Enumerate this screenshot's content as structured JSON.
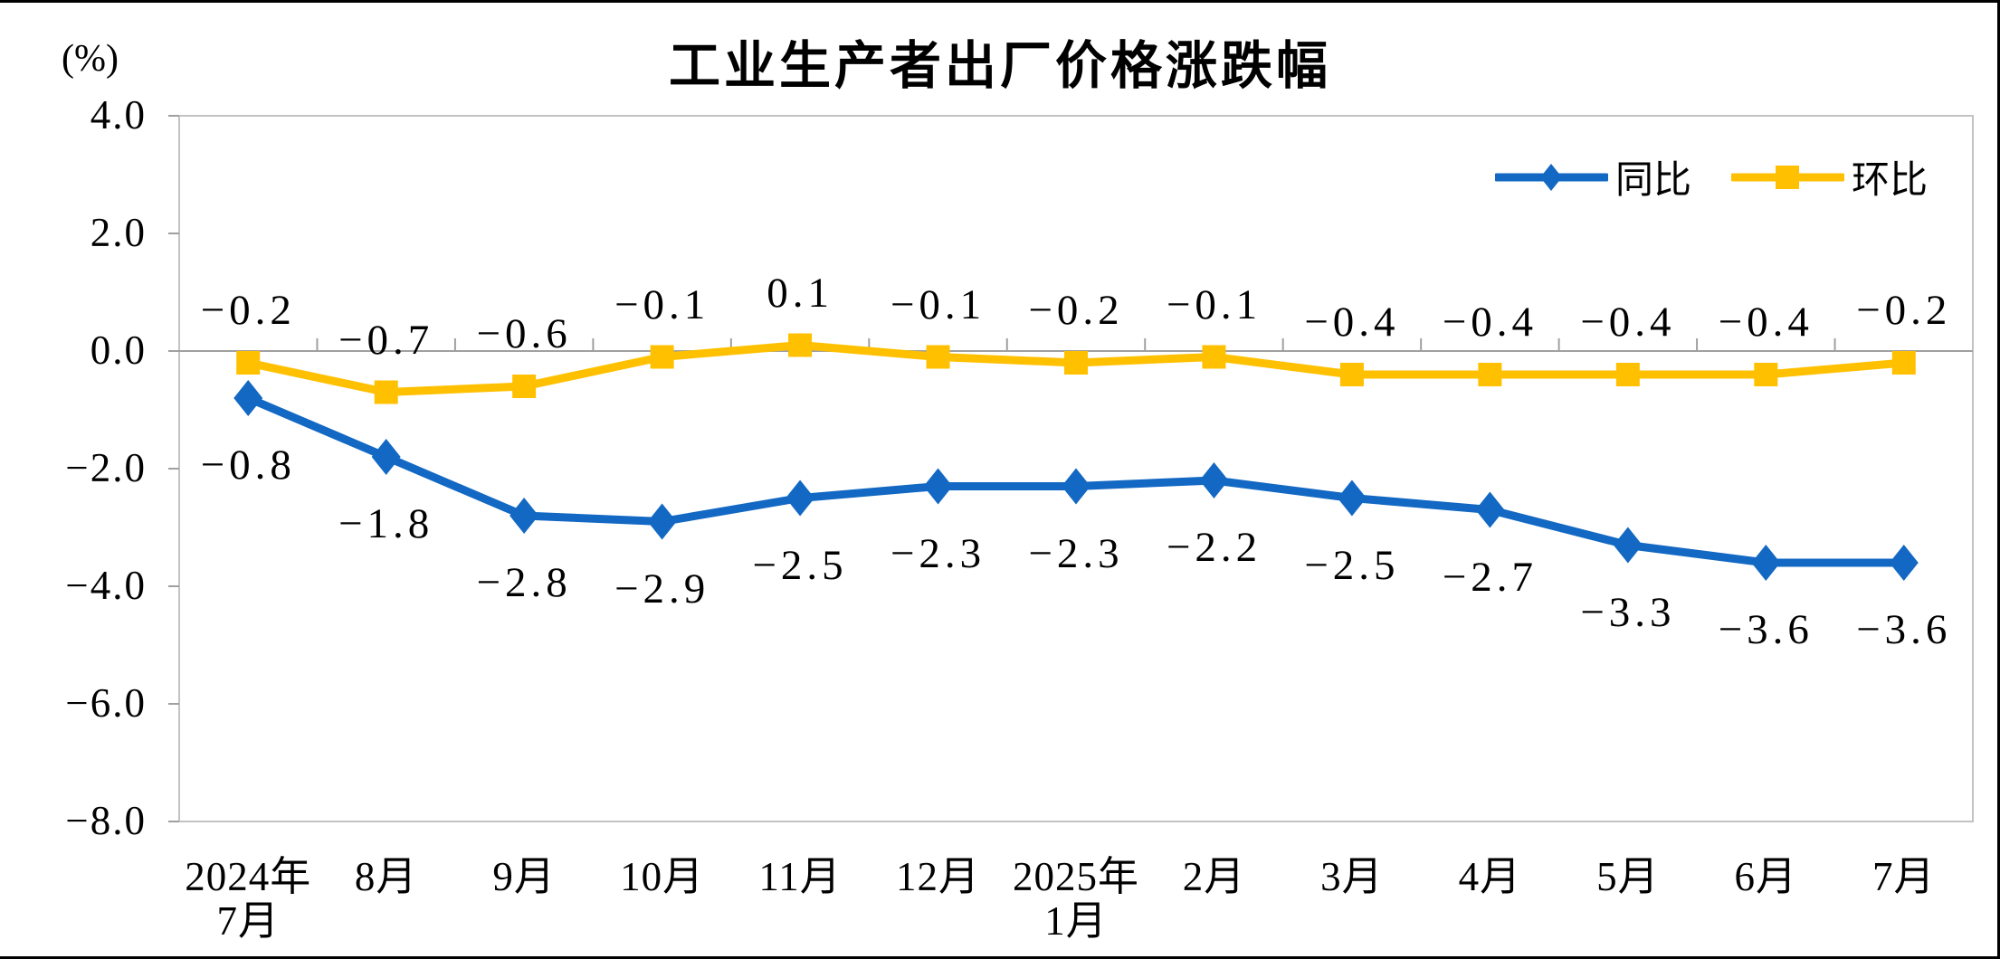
{
  "title": "工业生产者出厂价格涨跌幅",
  "y_axis_unit": "(%)",
  "legend": [
    {
      "id": "yoy",
      "label": "同比",
      "color": "#1268C3",
      "marker": "diamond"
    },
    {
      "id": "mom",
      "label": "环比",
      "color": "#FFC000",
      "marker": "square"
    }
  ],
  "colors": {
    "yoy_blue": "#1268C3",
    "mom_yellow": "#FFC000",
    "plot_border": "#c3c3c3",
    "axis_gray": "#a0a0a0",
    "text_black": "#000000"
  },
  "chart_data": {
    "type": "line",
    "title": "工业生产者出厂价格涨跌幅",
    "ylabel": "(%)",
    "categories": [
      "2024年\n7月",
      "8月",
      "9月",
      "10月",
      "11月",
      "12月",
      "2025年\n1月",
      "2月",
      "3月",
      "4月",
      "5月",
      "6月",
      "7月"
    ],
    "series": [
      {
        "name": "同比",
        "id": "yoy",
        "color": "#1268C3",
        "marker": "diamond",
        "label_position": "below",
        "values": [
          -0.8,
          -1.8,
          -2.8,
          -2.9,
          -2.5,
          -2.3,
          -2.3,
          -2.2,
          -2.5,
          -2.7,
          -3.3,
          -3.6,
          -3.6
        ]
      },
      {
        "name": "环比",
        "id": "mom",
        "color": "#FFC000",
        "marker": "square",
        "label_position": "above",
        "values": [
          -0.2,
          -0.7,
          -0.6,
          -0.1,
          0.1,
          -0.1,
          -0.2,
          -0.1,
          -0.4,
          -0.4,
          -0.4,
          -0.4,
          -0.2
        ]
      }
    ],
    "ylim": [
      -8.0,
      4.0
    ],
    "ytick_step": 2.0,
    "yticks": [
      "4.0",
      "2.0",
      "0.0",
      "-2.0",
      "-4.0",
      "-6.0",
      "-8.0"
    ],
    "grid": false,
    "zero_axis": true,
    "legend_position": "top-right",
    "data_labels": true
  }
}
